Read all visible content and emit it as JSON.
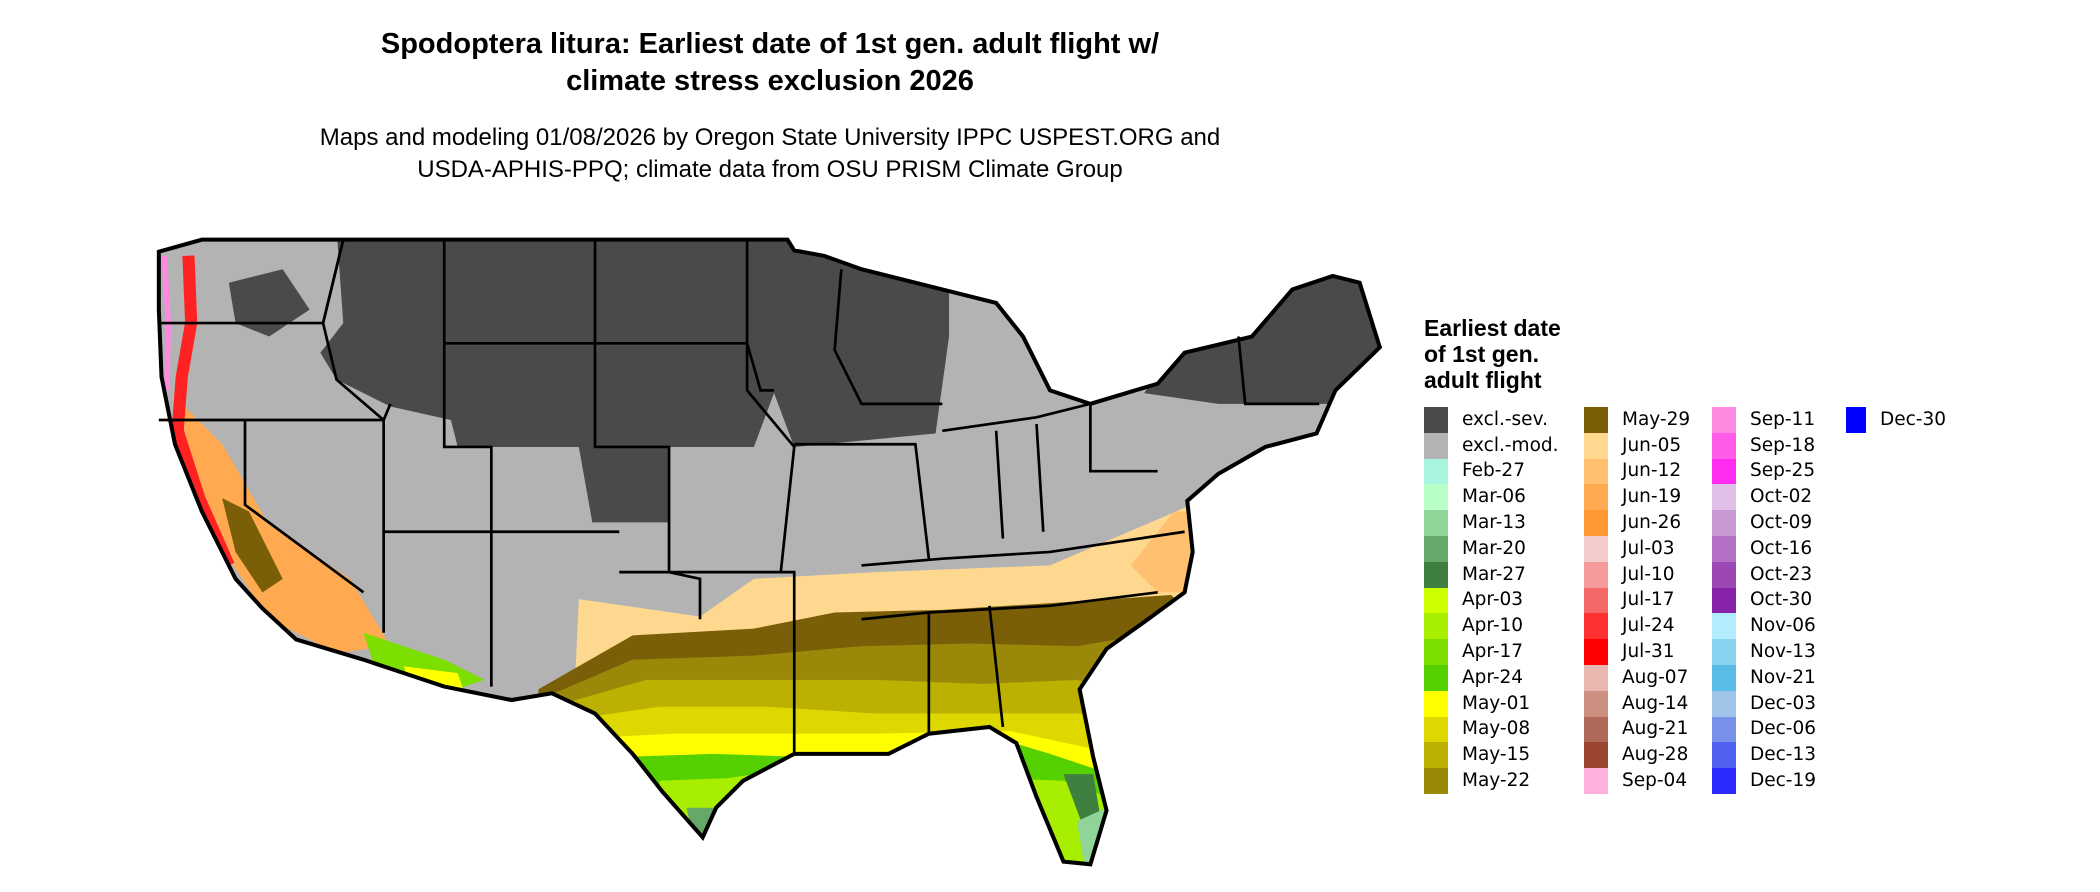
{
  "title": "Spodoptera litura: Earliest date of 1st gen. adult flight w/ climate stress exclusion 2026",
  "title_lines": [
    "Spodoptera litura: Earliest date of 1st gen. adult flight w/",
    "climate stress exclusion 2026"
  ],
  "subtitle_lines": [
    "Maps and modeling 01/08/2026 by Oregon State University IPPC USPEST.ORG and",
    "USDA-APHIS-PPQ; climate data from OSU PRISM Climate Group"
  ],
  "legend": {
    "title_lines": [
      "Earliest date",
      "of 1st gen.",
      "adult flight"
    ],
    "columns": [
      [
        {
          "label": "excl.-sev.",
          "color": "#4a4a4a"
        },
        {
          "label": "excl.-mod.",
          "color": "#b3b3b3"
        },
        {
          "label": "Feb-27",
          "color": "#a8f5e0"
        },
        {
          "label": "Mar-06",
          "color": "#b8ffc8"
        },
        {
          "label": "Mar-13",
          "color": "#90d498"
        },
        {
          "label": "Mar-20",
          "color": "#66a86a"
        },
        {
          "label": "Mar-27",
          "color": "#3f7f40"
        },
        {
          "label": "Apr-03",
          "color": "#ccff00"
        },
        {
          "label": "Apr-10",
          "color": "#a8ee00"
        },
        {
          "label": "Apr-17",
          "color": "#7ddf00"
        },
        {
          "label": "Apr-24",
          "color": "#55d000"
        },
        {
          "label": "May-01",
          "color": "#ffff00"
        },
        {
          "label": "May-08",
          "color": "#dfd800"
        },
        {
          "label": "May-15",
          "color": "#bcb000"
        },
        {
          "label": "May-22",
          "color": "#9a8808"
        }
      ],
      [
        {
          "label": "May-29",
          "color": "#7a5f08"
        },
        {
          "label": "Jun-05",
          "color": "#ffd890"
        },
        {
          "label": "Jun-12",
          "color": "#ffc070"
        },
        {
          "label": "Jun-19",
          "color": "#ffaa50"
        },
        {
          "label": "Jun-26",
          "color": "#ff9830"
        },
        {
          "label": "Jul-03",
          "color": "#f4cccc"
        },
        {
          "label": "Jul-10",
          "color": "#f49a9a"
        },
        {
          "label": "Jul-17",
          "color": "#f46868"
        },
        {
          "label": "Jul-24",
          "color": "#ff3030"
        },
        {
          "label": "Jul-31",
          "color": "#ff0000"
        },
        {
          "label": "Aug-07",
          "color": "#e8b8b0"
        },
        {
          "label": "Aug-14",
          "color": "#cc9080"
        },
        {
          "label": "Aug-21",
          "color": "#b06858"
        },
        {
          "label": "Aug-28",
          "color": "#9a4530"
        },
        {
          "label": "Sep-04",
          "color": "#ffb0dc"
        }
      ],
      [
        {
          "label": "Sep-11",
          "color": "#ff88e0"
        },
        {
          "label": "Sep-18",
          "color": "#ff5ae8"
        },
        {
          "label": "Sep-25",
          "color": "#ff2cf0"
        },
        {
          "label": "Oct-02",
          "color": "#e0c0e6"
        },
        {
          "label": "Oct-09",
          "color": "#c898d4"
        },
        {
          "label": "Oct-16",
          "color": "#b470c4"
        },
        {
          "label": "Oct-23",
          "color": "#9c48b4"
        },
        {
          "label": "Oct-30",
          "color": "#8822a8"
        },
        {
          "label": "Nov-06",
          "color": "#b4ecff"
        },
        {
          "label": "Nov-13",
          "color": "#88d4f0"
        },
        {
          "label": "Nov-21",
          "color": "#58bce6"
        },
        {
          "label": "Dec-03",
          "color": "#a0c4e8"
        },
        {
          "label": "Dec-06",
          "color": "#7890e8"
        },
        {
          "label": "Dec-13",
          "color": "#5060f0"
        },
        {
          "label": "Dec-19",
          "color": "#2a2aff"
        }
      ],
      [
        {
          "label": "Dec-30",
          "color": "#0000ff"
        }
      ]
    ]
  }
}
